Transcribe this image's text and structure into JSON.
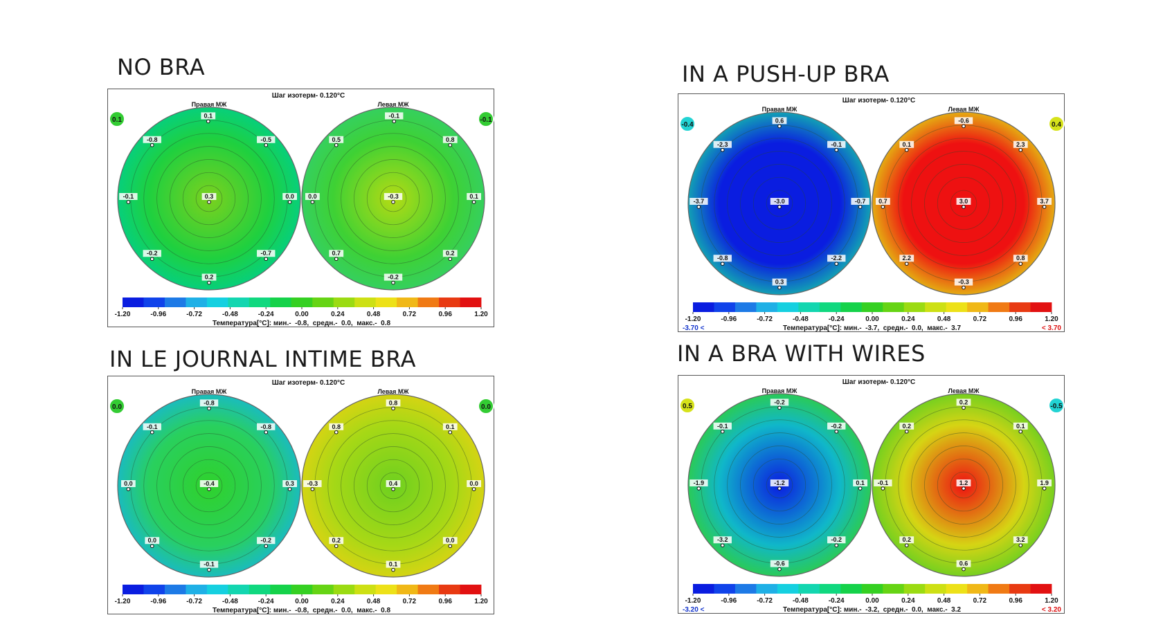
{
  "chart_data": [
    {
      "type": "heatmap",
      "heading": "NO BRA",
      "title": "Шаг изотерм- 0.120°C",
      "breast_labels": [
        "Правая МЖ",
        "Левая МЖ"
      ],
      "side_values": [
        "0.1",
        "-0.1"
      ],
      "side_colors": [
        "#33cc33",
        "#33cc33"
      ],
      "range_low": "",
      "range_high": "",
      "left_map": [
        "#7bd11e",
        "#1fd03f",
        "#00cf8c"
      ],
      "right_map": [
        "#b4db14",
        "#3ed134",
        "#33d06a"
      ],
      "points": [
        {
          "label": "0.1",
          "x": -0.01,
          "y": 0.95
        },
        {
          "label": "-0.8",
          "x": -0.67,
          "y": 0.67
        },
        {
          "label": "-0.5",
          "x": 0.67,
          "y": 0.67
        },
        {
          "label": "-0.1",
          "x": -0.95,
          "y": 0.0
        },
        {
          "label": "0.3",
          "x": 0.0,
          "y": 0.0
        },
        {
          "label": "0.0",
          "x": 0.95,
          "y": 0.0
        },
        {
          "label": "-0.2",
          "x": -0.67,
          "y": -0.67
        },
        {
          "label": "-0.7",
          "x": 0.67,
          "y": -0.67
        },
        {
          "label": "0.2",
          "x": 0.0,
          "y": -0.95
        },
        {
          "label": "-0.1",
          "x": 0.01,
          "y": 0.95,
          "side": "R"
        },
        {
          "label": "0.5",
          "x": -0.67,
          "y": 0.67,
          "side": "R"
        },
        {
          "label": "0.8",
          "x": 0.67,
          "y": 0.67,
          "side": "R"
        },
        {
          "label": "0.0",
          "x": -0.95,
          "y": 0.0,
          "side": "R"
        },
        {
          "label": "-0.3",
          "x": 0.0,
          "y": 0.0,
          "side": "R"
        },
        {
          "label": "0.1",
          "x": 0.95,
          "y": 0.0,
          "side": "R"
        },
        {
          "label": "0.7",
          "x": -0.67,
          "y": -0.67,
          "side": "R"
        },
        {
          "label": "0.2",
          "x": 0.67,
          "y": -0.67,
          "side": "R"
        },
        {
          "label": "-0.2",
          "x": 0.0,
          "y": -0.95,
          "side": "R"
        }
      ],
      "colorbar_ticks": [
        "-1.20",
        "-0.96",
        "-0.72",
        "-0.48",
        "-0.24",
        "0.00",
        "0.24",
        "0.48",
        "0.72",
        "0.96",
        "1.20"
      ],
      "footer": "Температура[°C]: мин.-  -0.8,  средн.-  0.0,  макс.-  0.8"
    },
    {
      "type": "heatmap",
      "heading": "IN A PUSH-UP BRA",
      "title": "Шаг изотерм- 0.120°C",
      "breast_labels": [
        "Правая МЖ",
        "Левая МЖ"
      ],
      "side_values": [
        "-0.4",
        "0.4"
      ],
      "side_colors": [
        "#22d3d3",
        "#d6e21a"
      ],
      "range_low": "-3.70 <",
      "range_high": "< 3.70",
      "left_map": [
        "#0a1de0",
        "#0a1de0",
        "#14c6a8"
      ],
      "right_map": [
        "#ee1111",
        "#ee1111",
        "#e2d812"
      ],
      "points": [
        {
          "label": "0.6",
          "x": 0.0,
          "y": 0.95
        },
        {
          "label": "-2.3",
          "x": -0.67,
          "y": 0.67
        },
        {
          "label": "-0.1",
          "x": 0.67,
          "y": 0.67
        },
        {
          "label": "-3.7",
          "x": -0.95,
          "y": 0.0
        },
        {
          "label": "-3.0",
          "x": 0.0,
          "y": 0.0
        },
        {
          "label": "-0.7",
          "x": 0.95,
          "y": 0.0
        },
        {
          "label": "-0.8",
          "x": -0.67,
          "y": -0.67
        },
        {
          "label": "-2.2",
          "x": 0.67,
          "y": -0.67
        },
        {
          "label": "0.3",
          "x": 0.0,
          "y": -0.95
        },
        {
          "label": "-0.6",
          "x": 0.0,
          "y": 0.95,
          "side": "R"
        },
        {
          "label": "0.1",
          "x": -0.67,
          "y": 0.67,
          "side": "R"
        },
        {
          "label": "2.3",
          "x": 0.67,
          "y": 0.67,
          "side": "R"
        },
        {
          "label": "0.7",
          "x": -0.95,
          "y": 0.0,
          "side": "R"
        },
        {
          "label": "3.0",
          "x": 0.0,
          "y": 0.0,
          "side": "R"
        },
        {
          "label": "3.7",
          "x": 0.95,
          "y": 0.0,
          "side": "R"
        },
        {
          "label": "2.2",
          "x": -0.67,
          "y": -0.67,
          "side": "R"
        },
        {
          "label": "0.8",
          "x": 0.67,
          "y": -0.67,
          "side": "R"
        },
        {
          "label": "-0.3",
          "x": 0.0,
          "y": -0.95,
          "side": "R"
        }
      ],
      "colorbar_ticks": [
        "-1.20",
        "-0.96",
        "-0.72",
        "-0.48",
        "-0.24",
        "0.00",
        "0.24",
        "0.48",
        "0.72",
        "0.96",
        "1.20"
      ],
      "footer": "Температура[°C]: мин.-  -3.7,  средн.-  0.0,  макс.-  3.7"
    },
    {
      "type": "heatmap",
      "heading": "IN LE JOURNAL INTIME BRA",
      "title": "Шаг изотерм- 0.120°C",
      "breast_labels": [
        "Правая МЖ",
        "Левая МЖ"
      ],
      "side_values": [
        "0.0",
        "0.0"
      ],
      "side_colors": [
        "#33cc33",
        "#33cc33"
      ],
      "range_low": "",
      "range_high": "",
      "left_map": [
        "#2fd12c",
        "#29d05e",
        "#16b6d8"
      ],
      "right_map": [
        "#6ed01f",
        "#a6d816",
        "#e2d312"
      ],
      "points": [
        {
          "label": "-0.8",
          "x": 0.0,
          "y": 0.95
        },
        {
          "label": "-0.1",
          "x": -0.67,
          "y": 0.67
        },
        {
          "label": "-0.8",
          "x": 0.67,
          "y": 0.67
        },
        {
          "label": "0.0",
          "x": -0.95,
          "y": 0.0
        },
        {
          "label": "-0.4",
          "x": 0.0,
          "y": 0.0
        },
        {
          "label": "0.3",
          "x": 0.95,
          "y": 0.0
        },
        {
          "label": "0.0",
          "x": -0.67,
          "y": -0.67
        },
        {
          "label": "-0.2",
          "x": 0.67,
          "y": -0.67
        },
        {
          "label": "-0.1",
          "x": 0.0,
          "y": -0.95
        },
        {
          "label": "0.8",
          "x": 0.0,
          "y": 0.95,
          "side": "R"
        },
        {
          "label": "0.8",
          "x": -0.67,
          "y": 0.67,
          "side": "R"
        },
        {
          "label": "0.1",
          "x": 0.67,
          "y": 0.67,
          "side": "R"
        },
        {
          "label": "-0.3",
          "x": -0.95,
          "y": 0.0,
          "side": "R"
        },
        {
          "label": "0.4",
          "x": 0.0,
          "y": 0.0,
          "side": "R"
        },
        {
          "label": "0.0",
          "x": 0.95,
          "y": 0.0,
          "side": "R"
        },
        {
          "label": "0.2",
          "x": -0.67,
          "y": -0.67,
          "side": "R"
        },
        {
          "label": "0.0",
          "x": 0.67,
          "y": -0.67,
          "side": "R"
        },
        {
          "label": "0.1",
          "x": 0.0,
          "y": -0.95,
          "side": "R"
        }
      ],
      "colorbar_ticks": [
        "-1.20",
        "-0.96",
        "-0.72",
        "-0.48",
        "-0.24",
        "0.00",
        "0.24",
        "0.48",
        "0.72",
        "0.96",
        "1.20"
      ],
      "footer": "Температура[°C]: мин.-  -0.8,  средн.-  0.0,  макс.-  0.8"
    },
    {
      "type": "heatmap",
      "heading": "IN A BRA WITH WIRES",
      "title": "Шаг изотерм- 0.120°C",
      "breast_labels": [
        "Правая МЖ",
        "Левая МЖ"
      ],
      "side_values": [
        "0.5",
        "-0.5"
      ],
      "side_colors": [
        "#d6e21a",
        "#22d3d3"
      ],
      "range_low": "-3.20 <",
      "range_high": "< 3.20",
      "left_map": [
        "#0a1de0",
        "#10b7c9",
        "#31d038"
      ],
      "right_map": [
        "#ee1111",
        "#d6d414",
        "#5bcf22"
      ],
      "points": [
        {
          "label": "-0.2",
          "x": 0.0,
          "y": 0.95
        },
        {
          "label": "-0.1",
          "x": -0.67,
          "y": 0.67
        },
        {
          "label": "-0.2",
          "x": 0.67,
          "y": 0.67
        },
        {
          "label": "-1.9",
          "x": -0.95,
          "y": 0.0
        },
        {
          "label": "-1.2",
          "x": 0.0,
          "y": 0.0
        },
        {
          "label": "0.1",
          "x": 0.95,
          "y": 0.0
        },
        {
          "label": "-3.2",
          "x": -0.67,
          "y": -0.67
        },
        {
          "label": "-0.2",
          "x": 0.67,
          "y": -0.67
        },
        {
          "label": "-0.6",
          "x": 0.0,
          "y": -0.95
        },
        {
          "label": "0.2",
          "x": 0.0,
          "y": 0.95,
          "side": "R"
        },
        {
          "label": "0.2",
          "x": -0.67,
          "y": 0.67,
          "side": "R"
        },
        {
          "label": "0.1",
          "x": 0.67,
          "y": 0.67,
          "side": "R"
        },
        {
          "label": "-0.1",
          "x": -0.95,
          "y": 0.0,
          "side": "R"
        },
        {
          "label": "1.2",
          "x": 0.0,
          "y": 0.0,
          "side": "R"
        },
        {
          "label": "1.9",
          "x": 0.95,
          "y": 0.0,
          "side": "R"
        },
        {
          "label": "0.2",
          "x": -0.67,
          "y": -0.67,
          "side": "R"
        },
        {
          "label": "3.2",
          "x": 0.67,
          "y": -0.67,
          "side": "R"
        },
        {
          "label": "0.6",
          "x": 0.0,
          "y": -0.95,
          "side": "R"
        }
      ],
      "colorbar_ticks": [
        "-1.20",
        "-0.96",
        "-0.72",
        "-0.48",
        "-0.24",
        "0.00",
        "0.24",
        "0.48",
        "0.72",
        "0.96",
        "1.20"
      ],
      "footer": "Температура[°C]: мин.-  -3.2,  средн.-  0.0,  макс.-  3.2"
    }
  ],
  "colorbar_colors": [
    "#0a1de0",
    "#1043ea",
    "#1d7ae6",
    "#1fb0e6",
    "#15d0e0",
    "#13d6b0",
    "#10d87f",
    "#15d24a",
    "#35d022",
    "#66d414",
    "#9bdb12",
    "#cde014",
    "#ede118",
    "#f0b817",
    "#f07a14",
    "#e83a12",
    "#e21111"
  ]
}
